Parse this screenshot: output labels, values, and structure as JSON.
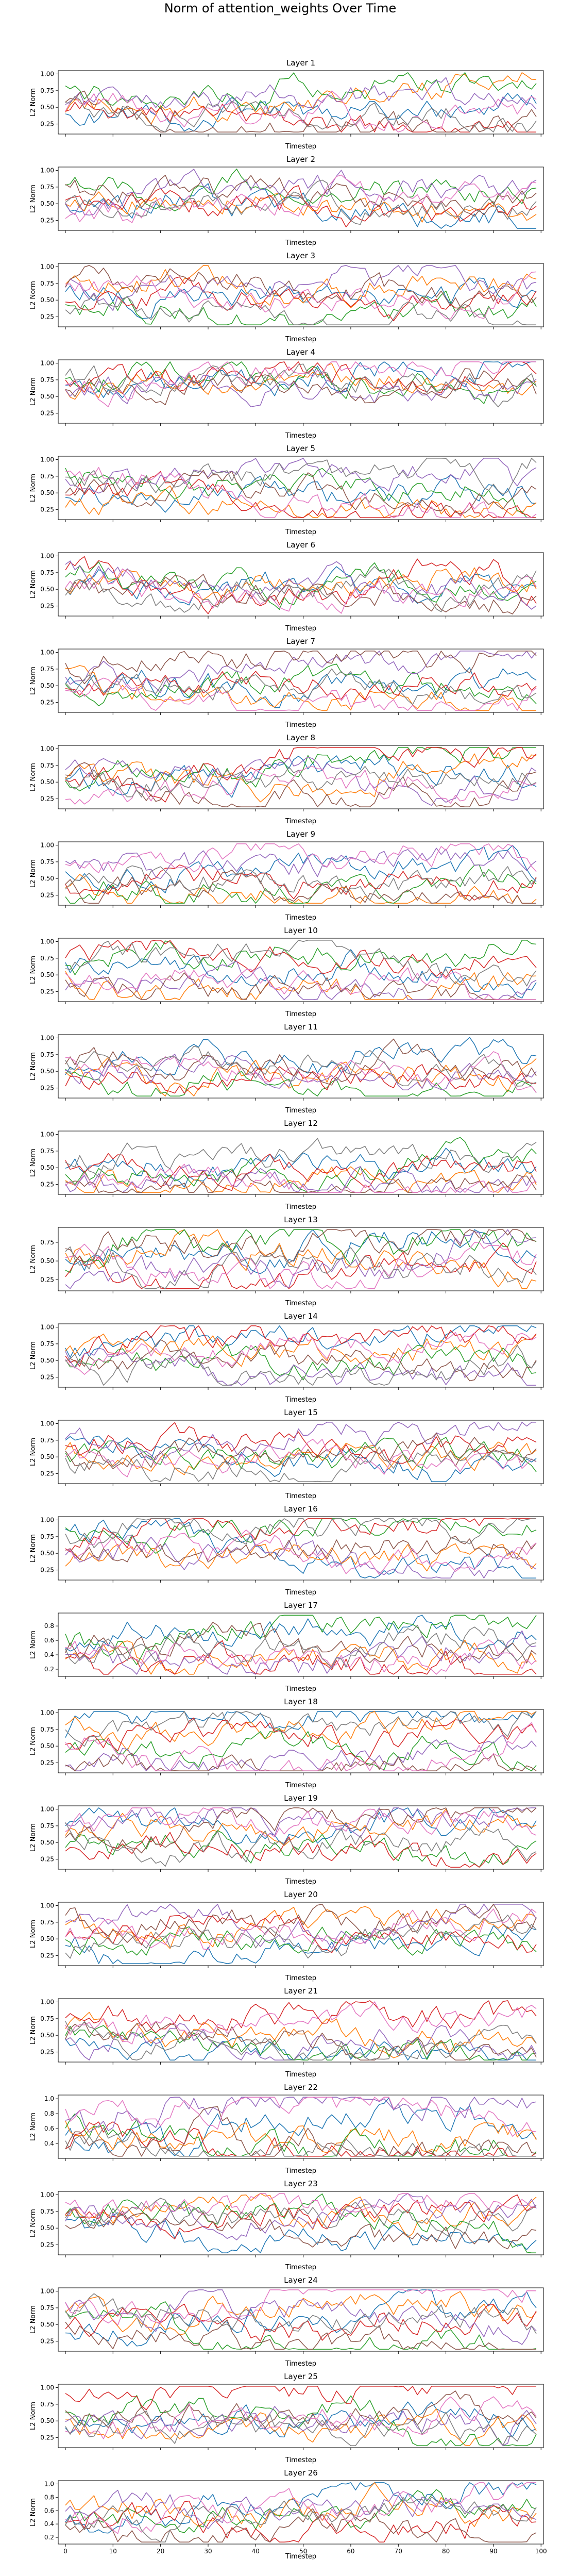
{
  "figure": {
    "title": "Norm of attention_weights Over Time"
  },
  "chart_data": {
    "type": "line",
    "x_axis": {
      "label": "Timestep",
      "range": [
        0,
        99
      ],
      "ticks": [
        0,
        10,
        20,
        30,
        40,
        50,
        60,
        70,
        80,
        90,
        100
      ]
    },
    "y_axis_label": "L2 Norm",
    "series_colors": [
      "#1f77b4",
      "#ff7f0e",
      "#2ca02c",
      "#d62728",
      "#9467bd",
      "#8c564b",
      "#e377c2",
      "#7f7f7f"
    ],
    "panels": [
      {
        "title": "Layer 1",
        "yticks": [
          "0.25",
          "0.50",
          "0.75",
          "1.00"
        ],
        "ylim": [
          0.1,
          1.05
        ],
        "seed": 101,
        "center": 0.52
      },
      {
        "title": "Layer 2",
        "yticks": [
          "0.25",
          "0.50",
          "0.75",
          "1.00"
        ],
        "ylim": [
          0.1,
          1.05
        ],
        "seed": 202,
        "center": 0.55
      },
      {
        "title": "Layer 3",
        "yticks": [
          "0.25",
          "0.50",
          "0.75",
          "1.00"
        ],
        "ylim": [
          0.1,
          1.05
        ],
        "seed": 303,
        "center": 0.62
      },
      {
        "title": "Layer 4",
        "yticks": [
          "0.25",
          "0.50",
          "0.75",
          "1.00"
        ],
        "ylim": [
          0.1,
          1.05
        ],
        "seed": 404,
        "center": 0.6
      },
      {
        "title": "Layer 5",
        "yticks": [
          "0.25",
          "0.50",
          "0.75",
          "1.00"
        ],
        "ylim": [
          0.1,
          1.05
        ],
        "seed": 505,
        "center": 0.58
      },
      {
        "title": "Layer 6",
        "yticks": [
          "0.25",
          "0.50",
          "0.75",
          "1.00"
        ],
        "ylim": [
          0.1,
          1.05
        ],
        "seed": 606,
        "center": 0.6
      },
      {
        "title": "Layer 7",
        "yticks": [
          "0.25",
          "0.50",
          "0.75",
          "1.00"
        ],
        "ylim": [
          0.1,
          1.05
        ],
        "seed": 707,
        "center": 0.55
      },
      {
        "title": "Layer 8",
        "yticks": [
          "0.25",
          "0.50",
          "0.75",
          "1.00"
        ],
        "ylim": [
          0.1,
          1.05
        ],
        "seed": 808,
        "center": 0.5
      },
      {
        "title": "Layer 9",
        "yticks": [
          "0.25",
          "0.50",
          "0.75",
          "1.00"
        ],
        "ylim": [
          0.1,
          1.05
        ],
        "seed": 909,
        "center": 0.5
      },
      {
        "title": "Layer 10",
        "yticks": [
          "0.25",
          "0.50",
          "0.75",
          "1.00"
        ],
        "ylim": [
          0.1,
          1.05
        ],
        "seed": 1010,
        "center": 0.52
      },
      {
        "title": "Layer 11",
        "yticks": [
          "0.25",
          "0.50",
          "0.75",
          "1.00"
        ],
        "ylim": [
          0.1,
          1.05
        ],
        "seed": 1111,
        "center": 0.5
      },
      {
        "title": "Layer 12",
        "yticks": [
          "0.25",
          "0.50",
          "0.75",
          "1.00"
        ],
        "ylim": [
          0.1,
          1.05
        ],
        "seed": 1212,
        "center": 0.48
      },
      {
        "title": "Layer 13",
        "yticks": [
          "0.25",
          "0.50",
          "0.75"
        ],
        "ylim": [
          0.1,
          0.95
        ],
        "seed": 1313,
        "center": 0.45
      },
      {
        "title": "Layer 14",
        "yticks": [
          "0.25",
          "0.50",
          "0.75",
          "1.00"
        ],
        "ylim": [
          0.1,
          1.05
        ],
        "seed": 1414,
        "center": 0.55
      },
      {
        "title": "Layer 15",
        "yticks": [
          "0.25",
          "0.50",
          "0.75",
          "1.00"
        ],
        "ylim": [
          0.1,
          1.05
        ],
        "seed": 1515,
        "center": 0.55
      },
      {
        "title": "Layer 16",
        "yticks": [
          "0.25",
          "0.50",
          "0.75",
          "1.00"
        ],
        "ylim": [
          0.1,
          1.05
        ],
        "seed": 1616,
        "center": 0.6
      },
      {
        "title": "Layer 17",
        "yticks": [
          "0.2",
          "0.4",
          "0.6",
          "0.8"
        ],
        "ylim": [
          0.1,
          0.98
        ],
        "seed": 1717,
        "center": 0.45
      },
      {
        "title": "Layer 18",
        "yticks": [
          "0.25",
          "0.50",
          "0.75",
          "1.00"
        ],
        "ylim": [
          0.1,
          1.05
        ],
        "seed": 1818,
        "center": 0.52
      },
      {
        "title": "Layer 19",
        "yticks": [
          "0.25",
          "0.50",
          "0.75",
          "1.00"
        ],
        "ylim": [
          0.1,
          1.05
        ],
        "seed": 1919,
        "center": 0.58
      },
      {
        "title": "Layer 20",
        "yticks": [
          "0.25",
          "0.50",
          "0.75",
          "1.00"
        ],
        "ylim": [
          0.1,
          1.05
        ],
        "seed": 2020,
        "center": 0.62
      },
      {
        "title": "Layer 21",
        "yticks": [
          "0.25",
          "0.50",
          "0.75",
          "1.00"
        ],
        "ylim": [
          0.1,
          1.05
        ],
        "seed": 2121,
        "center": 0.6
      },
      {
        "title": "Layer 22",
        "yticks": [
          "0.4",
          "0.6",
          "0.8",
          "1.0"
        ],
        "ylim": [
          0.2,
          1.05
        ],
        "seed": 2222,
        "center": 0.6
      },
      {
        "title": "Layer 23",
        "yticks": [
          "0.25",
          "0.50",
          "0.75",
          "1.00"
        ],
        "ylim": [
          0.1,
          1.05
        ],
        "seed": 2323,
        "center": 0.65
      },
      {
        "title": "Layer 24",
        "yticks": [
          "0.25",
          "0.50",
          "0.75",
          "1.00"
        ],
        "ylim": [
          0.1,
          1.05
        ],
        "seed": 2424,
        "center": 0.62
      },
      {
        "title": "Layer 25",
        "yticks": [
          "0.25",
          "0.50",
          "0.75",
          "1.00"
        ],
        "ylim": [
          0.1,
          1.05
        ],
        "seed": 2525,
        "center": 0.58
      },
      {
        "title": "Layer 26",
        "yticks": [
          "0.2",
          "0.4",
          "0.6",
          "0.8",
          "1.0"
        ],
        "ylim": [
          0.1,
          1.05
        ],
        "seed": 2626,
        "center": 0.55
      }
    ]
  }
}
